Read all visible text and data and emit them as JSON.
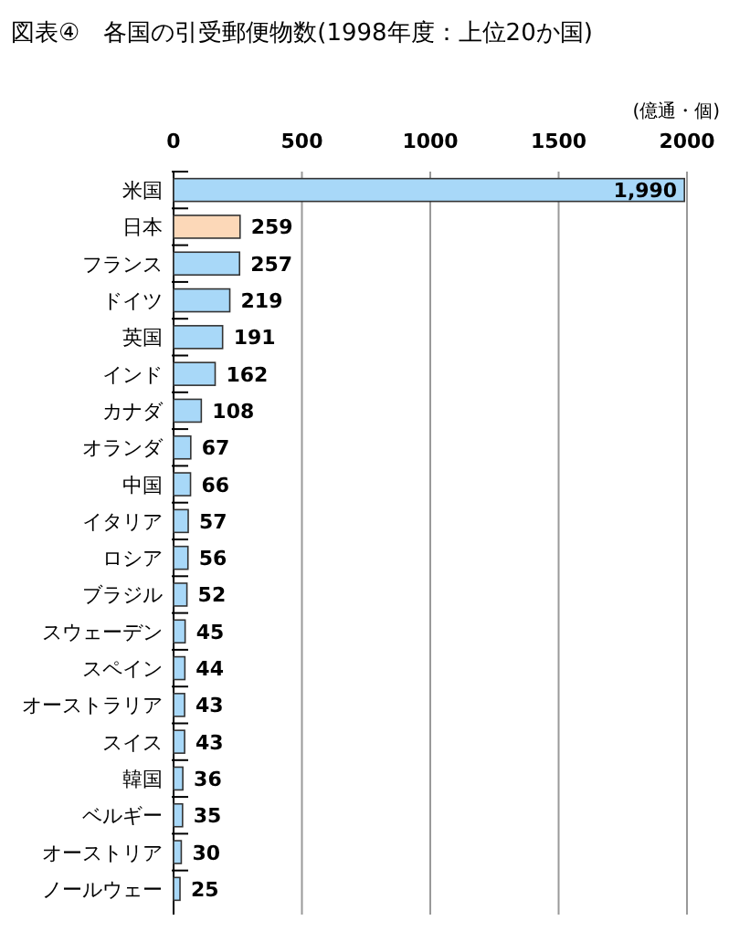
{
  "chart_data": {
    "type": "bar",
    "orientation": "horizontal",
    "title": "図表④　各国の引受郵便物数(1998年度：上位20か国)",
    "xlabel": "(億通・個)",
    "categories": [
      "米国",
      "日本",
      "フランス",
      "ドイツ",
      "英国",
      "インド",
      "カナダ",
      "オランダ",
      "中国",
      "イタリア",
      "ロシア",
      "ブラジル",
      "スウェーデン",
      "スペイン",
      "オーストラリア",
      "スイス",
      "韓国",
      "ベルギー",
      "オーストリア",
      "ノールウェー"
    ],
    "values": [
      1990,
      259,
      257,
      219,
      191,
      162,
      108,
      67,
      66,
      57,
      56,
      52,
      45,
      44,
      43,
      43,
      36,
      35,
      30,
      25
    ],
    "value_labels": [
      "1,990",
      "259",
      "257",
      "219",
      "191",
      "162",
      "108",
      "67",
      "66",
      "57",
      "56",
      "52",
      "45",
      "44",
      "43",
      "43",
      "36",
      "35",
      "30",
      "25"
    ],
    "colors": [
      "#a8d8f8",
      "#fcd8b8",
      "#a8d8f8",
      "#a8d8f8",
      "#a8d8f8",
      "#a8d8f8",
      "#a8d8f8",
      "#a8d8f8",
      "#a8d8f8",
      "#a8d8f8",
      "#a8d8f8",
      "#a8d8f8",
      "#a8d8f8",
      "#a8d8f8",
      "#a8d8f8",
      "#a8d8f8",
      "#a8d8f8",
      "#a8d8f8",
      "#a8d8f8",
      "#a8d8f8"
    ],
    "xlim": [
      0,
      2000
    ],
    "xticks": [
      0,
      500,
      1000,
      1500,
      2000
    ],
    "grid": "x"
  }
}
